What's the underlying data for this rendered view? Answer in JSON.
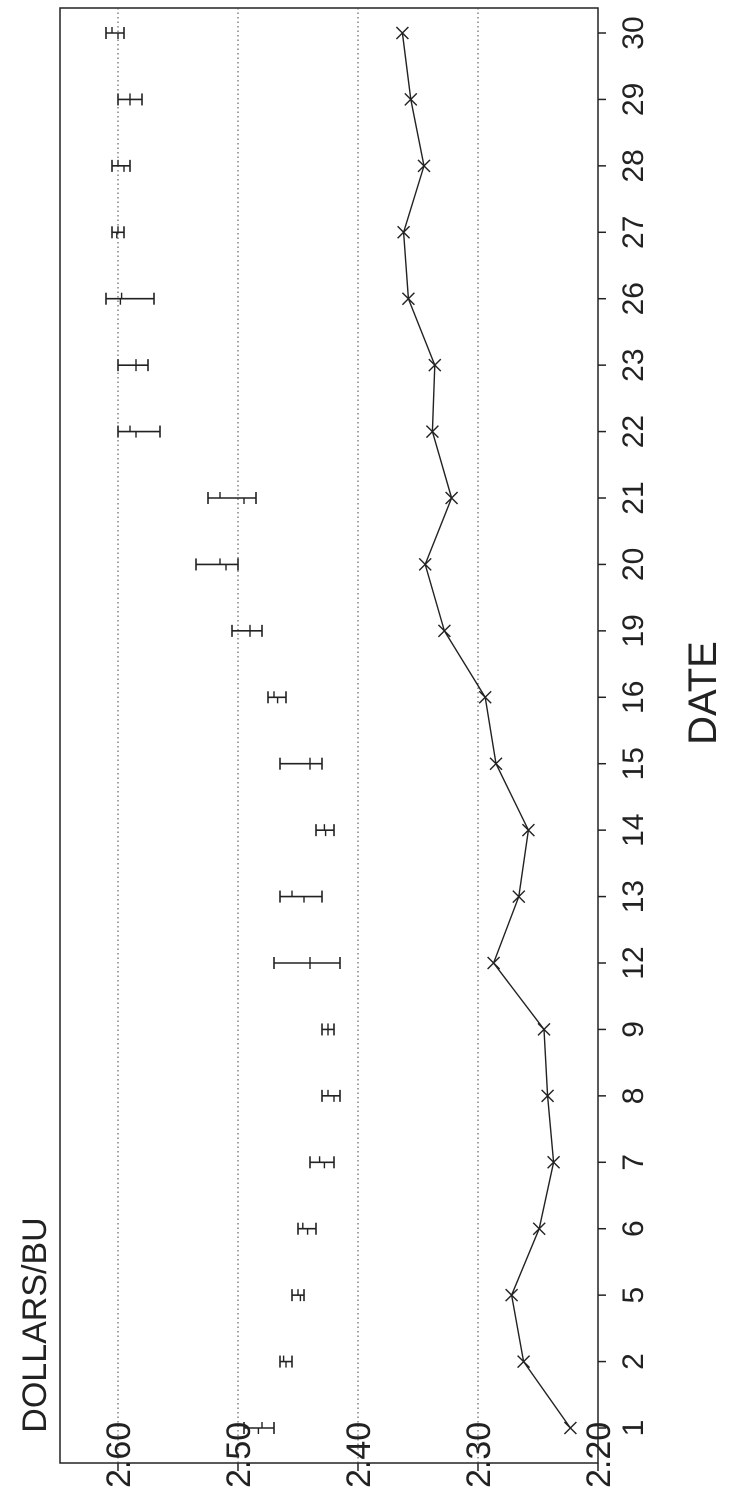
{
  "chart_data": {
    "type": "line",
    "title": "",
    "xlabel": "DATE",
    "ylabel": "DOLLARS/BU",
    "orientation": "rotated-90-ccw",
    "categories": [
      "1",
      "2",
      "5",
      "6",
      "7",
      "8",
      "9",
      "12",
      "13",
      "14",
      "15",
      "16",
      "19",
      "20",
      "21",
      "22",
      "23",
      "26",
      "27",
      "28",
      "29",
      "30"
    ],
    "ylim": [
      2.2,
      2.65
    ],
    "yticks": [
      "2.20",
      "2.30",
      "2.40",
      "2.50",
      "2.60"
    ],
    "grid": "dotted horizontal at 2.30, 2.40, 2.50, 2.60",
    "series": [
      {
        "type": "line-with-x-markers",
        "values": [
          2.223,
          2.262,
          2.272,
          2.249,
          2.237,
          2.242,
          2.245,
          2.287,
          2.266,
          2.258,
          2.285,
          2.294,
          2.328,
          2.344,
          2.322,
          2.338,
          2.336,
          2.358,
          2.362,
          2.345,
          2.356,
          2.363
        ]
      },
      {
        "type": "high-low-open-close",
        "high": [
          2.495,
          2.465,
          2.455,
          2.45,
          2.44,
          2.43,
          2.43,
          2.47,
          2.465,
          2.435,
          2.465,
          2.475,
          2.505,
          2.535,
          2.525,
          2.6,
          2.6,
          2.61,
          2.605,
          2.605,
          2.6,
          2.61
        ],
        "low": [
          2.47,
          2.455,
          2.445,
          2.435,
          2.42,
          2.415,
          2.42,
          2.415,
          2.43,
          2.42,
          2.43,
          2.46,
          2.48,
          2.5,
          2.485,
          2.565,
          2.575,
          2.57,
          2.595,
          2.59,
          2.58,
          2.595
        ],
        "open": [
          2.48,
          2.462,
          2.45,
          2.446,
          2.432,
          2.425,
          2.425,
          2.44,
          2.455,
          2.428,
          2.44,
          2.47,
          2.49,
          2.515,
          2.515,
          2.59,
          2.585,
          2.597,
          2.6,
          2.6,
          2.59,
          2.605
        ],
        "close": [
          2.483,
          2.46,
          2.448,
          2.442,
          2.428,
          2.42,
          2.425,
          2.44,
          2.445,
          2.427,
          2.44,
          2.467,
          2.49,
          2.51,
          2.495,
          2.585,
          2.585,
          2.598,
          2.601,
          2.595,
          2.59,
          2.6
        ]
      }
    ]
  }
}
